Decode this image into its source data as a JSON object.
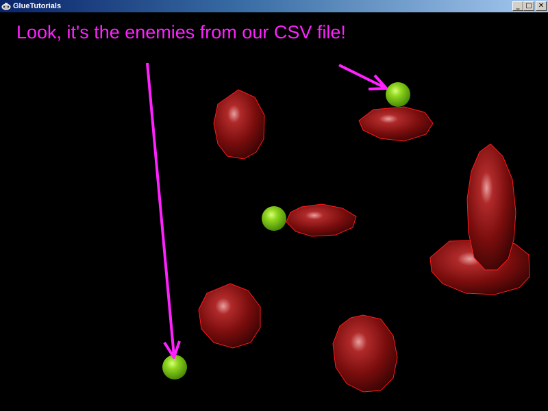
{
  "window": {
    "title": "GlueTutorials",
    "app_icon": "gamepad-icon",
    "buttons": {
      "minimize": "_",
      "maximize": "□",
      "close": "✕"
    }
  },
  "annotation": {
    "text": "Look, it's the enemies from our CSV file!",
    "color": "#ff22ff"
  },
  "colors": {
    "background": "#000000",
    "enemy_fill": "#7a0d0d",
    "enemy_outline": "#ff1a1a",
    "ball_fill": "#7ac51a",
    "arrow": "#ff22ff"
  }
}
